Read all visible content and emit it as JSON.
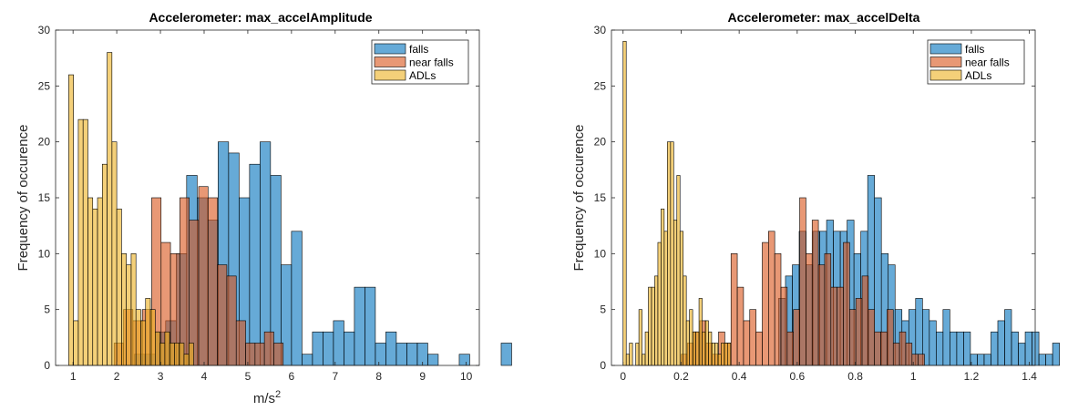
{
  "chart_data": [
    {
      "type": "bar",
      "title": "Accelerometer: max_accelAmplitude",
      "xlabel": "m/s",
      "xlabel_sup": "2",
      "ylabel": "Frequency of occurence",
      "xlim": [
        0.6,
        10.3
      ],
      "ylim": [
        0,
        30
      ],
      "xticks": [
        "1",
        "2",
        "3",
        "4",
        "5",
        "6",
        "7",
        "8",
        "9",
        "10"
      ],
      "yticks": [
        "0",
        "5",
        "10",
        "15",
        "20",
        "25",
        "30"
      ],
      "legend_position": "top-right",
      "series": [
        {
          "name": "falls",
          "color": "#0072BD",
          "bin_start": 2.4,
          "bin_width": 0.24,
          "values": [
            1,
            1,
            3,
            4,
            10,
            17,
            15,
            13,
            20,
            19,
            15,
            18,
            20,
            17,
            9,
            12,
            1,
            3,
            3,
            4,
            3,
            7,
            7,
            2,
            3,
            2,
            2,
            2,
            1,
            0,
            0,
            1,
            0,
            0,
            0,
            2
          ]
        },
        {
          "name": "near falls",
          "color": "#D95319",
          "bin_start": 1.94,
          "bin_width": 0.215,
          "values": [
            2,
            5,
            4,
            5,
            15,
            11,
            10,
            15,
            13,
            16,
            15,
            9,
            8,
            4,
            2,
            2,
            3,
            2
          ]
        },
        {
          "name": "ADLs",
          "color": "#EDB120",
          "bin_start": 0.9,
          "bin_width": 0.11,
          "values": [
            26,
            4,
            22,
            22,
            15,
            14,
            15,
            18,
            28,
            20,
            14,
            10,
            9,
            10,
            5,
            4,
            6,
            5,
            3,
            2,
            3,
            2,
            2,
            2,
            1,
            2
          ]
        }
      ]
    },
    {
      "type": "bar",
      "title": "Accelerometer: max_accelDelta",
      "xlabel": "",
      "ylabel": "Frequency of occurence",
      "xlim": [
        -0.04,
        1.42
      ],
      "ylim": [
        0,
        30
      ],
      "xticks": [
        "0",
        "0.2",
        "0.4",
        "0.6",
        "0.8",
        "1",
        "1.2",
        "1.4"
      ],
      "yticks": [
        "0",
        "5",
        "10",
        "15",
        "20",
        "25",
        "30"
      ],
      "legend_position": "top-right",
      "series": [
        {
          "name": "falls",
          "color": "#0072BD",
          "bin_start": 0.536,
          "bin_width": 0.0236,
          "values": [
            6,
            8,
            9,
            12,
            9,
            12,
            12,
            13,
            12,
            12,
            13,
            10,
            12,
            17,
            15,
            10,
            9,
            5,
            4,
            5,
            6,
            5,
            4,
            3,
            5,
            3,
            3,
            3,
            1,
            1,
            1,
            3,
            4,
            5,
            3,
            2,
            3,
            3,
            1,
            1,
            2
          ]
        },
        {
          "name": "near falls",
          "color": "#D95319",
          "bin_start": 0.2,
          "bin_width": 0.0215,
          "values": [
            1,
            2,
            3,
            4,
            2,
            1,
            3,
            2,
            10,
            7,
            4,
            5,
            3,
            11,
            12,
            10,
            7,
            3,
            5,
            15,
            10,
            13,
            9,
            10,
            7,
            7,
            11,
            5,
            6,
            8,
            5,
            3,
            3,
            5,
            2,
            3,
            2,
            1,
            1
          ]
        },
        {
          "name": "ADLs",
          "color": "#EDB120",
          "bin_start": 0.0,
          "bin_width": 0.0109,
          "values": [
            29,
            1,
            2,
            0,
            2,
            5,
            1,
            3,
            7,
            7,
            8,
            11,
            14,
            12,
            20,
            20,
            13,
            17,
            12,
            8,
            4,
            5,
            3,
            3,
            6,
            3,
            4,
            3,
            2,
            2,
            1,
            2,
            2,
            2
          ]
        }
      ]
    }
  ]
}
